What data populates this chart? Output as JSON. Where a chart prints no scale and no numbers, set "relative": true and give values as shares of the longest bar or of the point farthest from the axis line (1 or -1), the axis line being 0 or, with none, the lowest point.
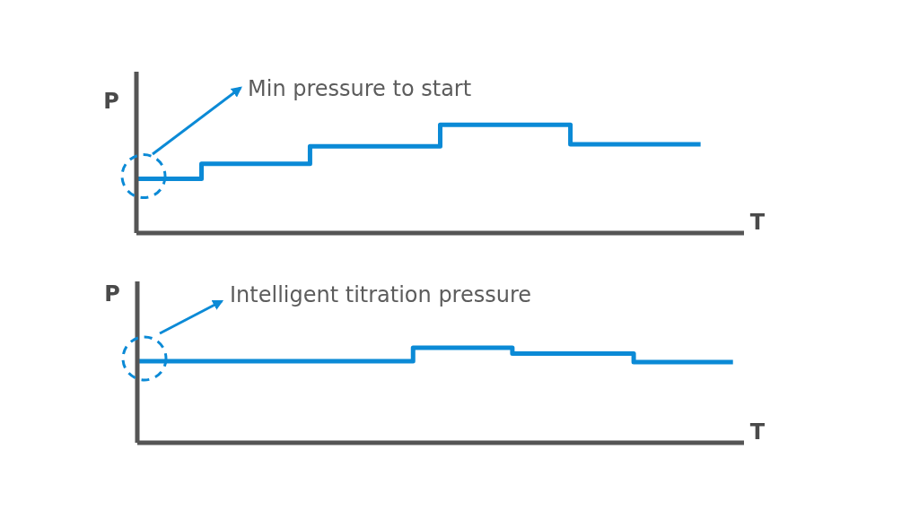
{
  "chart_data": [
    {
      "type": "step",
      "xlabel": "T",
      "ylabel": "P",
      "relative": true,
      "categories": [
        null,
        null,
        null,
        null,
        null,
        null,
        null,
        null,
        null,
        null,
        null,
        null,
        null,
        null,
        null,
        null,
        null,
        null,
        null,
        null,
        null,
        null,
        null,
        null,
        null,
        null,
        null,
        null,
        null
      ],
      "series": [
        {
          "color": "#0b8ad6",
          "values": [
            0.5,
            0.5,
            0.5,
            0.64,
            0.64,
            0.64,
            0.64,
            0.64,
            0.8,
            0.8,
            0.8,
            0.8,
            0.8,
            0.8,
            1,
            1,
            1,
            1,
            1,
            1,
            0.82,
            0.82,
            0.82,
            0.82,
            0.82,
            0.82,
            0.82,
            null,
            null
          ]
        }
      ],
      "annotations": [
        "Min pressure to start"
      ]
    },
    {
      "type": "step",
      "xlabel": "T",
      "ylabel": "P",
      "relative": true,
      "categories": [
        null,
        null,
        null,
        null,
        null,
        null,
        null,
        null,
        null,
        null,
        null,
        null,
        null,
        null,
        null,
        null,
        null,
        null,
        null,
        null,
        null,
        null,
        null,
        null,
        null,
        null,
        null,
        null,
        null,
        null,
        null,
        null,
        null,
        null,
        null,
        null,
        null,
        null,
        null,
        null,
        null,
        null,
        null,
        null,
        null,
        null,
        null,
        null,
        null,
        null,
        null,
        null,
        null,
        null,
        null,
        null
      ],
      "series": [
        {
          "color": "#0b8ad6",
          "values": [
            0.86,
            0.86,
            0.86,
            0.86,
            0.86,
            0.86,
            0.86,
            0.86,
            0.86,
            0.86,
            0.86,
            0.86,
            0.86,
            0.86,
            0.86,
            0.86,
            0.86,
            0.86,
            0.86,
            0.86,
            0.86,
            0.86,
            0.86,
            0.86,
            0.86,
            1,
            1,
            1,
            1,
            1,
            1,
            1,
            1,
            1,
            0.94,
            0.94,
            0.94,
            0.94,
            0.94,
            0.94,
            0.94,
            0.94,
            0.94,
            0.94,
            0.94,
            0.85,
            0.85,
            0.85,
            0.85,
            0.85,
            0.85,
            0.85,
            0.85,
            0.85,
            0.85,
            null
          ]
        }
      ],
      "annotations": [
        "Intelligent titration pressure"
      ]
    }
  ]
}
